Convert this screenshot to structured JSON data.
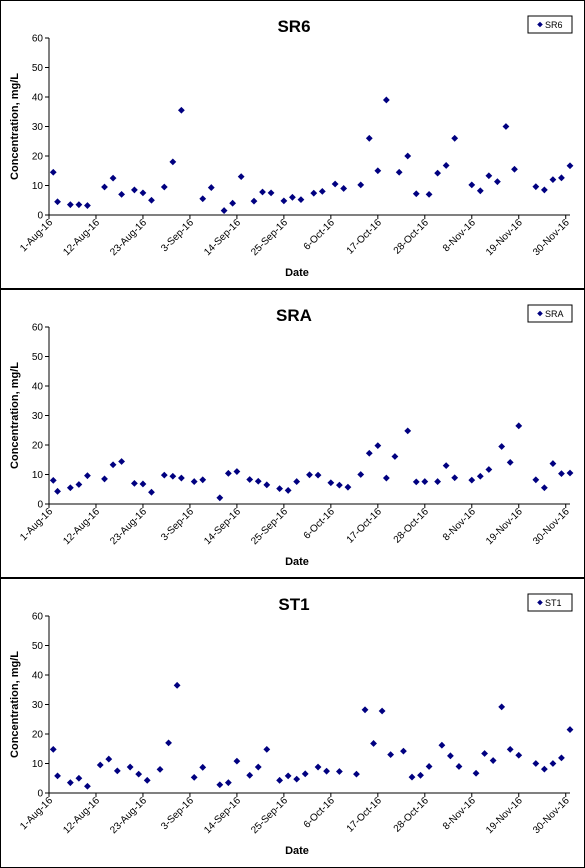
{
  "colors": {
    "marker": "#000080",
    "axis": "#000000",
    "background": "#ffffff"
  },
  "chart_data": [
    {
      "type": "scatter",
      "title": "SR6",
      "xlabel": "Date",
      "ylabel": "Concentration, mg/L",
      "ylim": [
        0,
        60
      ],
      "yticks": [
        "0",
        "10",
        "20",
        "30",
        "40",
        "50",
        "60"
      ],
      "xlim": [
        "2016-08-01",
        "2016-12-01"
      ],
      "xtick_dates": [
        "2016-08-01",
        "2016-08-12",
        "2016-08-23",
        "2016-09-03",
        "2016-09-14",
        "2016-09-25",
        "2016-10-06",
        "2016-10-17",
        "2016-10-28",
        "2016-11-08",
        "2016-11-19",
        "2016-11-30"
      ],
      "xtick_labels": [
        "1-Aug-16",
        "12-Aug-16",
        "23-Aug-16",
        "3-Sep-16",
        "14-Sep-16",
        "25-Sep-16",
        "6-Oct-16",
        "17-Oct-16",
        "28-Oct-16",
        "8-Nov-16",
        "19-Nov-16",
        "30-Nov-16"
      ],
      "legend": "top-right",
      "series": [
        {
          "name": "SR6",
          "x": [
            "2016-08-02",
            "2016-08-03",
            "2016-08-06",
            "2016-08-08",
            "2016-08-10",
            "2016-08-14",
            "2016-08-16",
            "2016-08-18",
            "2016-08-21",
            "2016-08-23",
            "2016-08-25",
            "2016-08-28",
            "2016-08-30",
            "2016-09-01",
            "2016-09-06",
            "2016-09-08",
            "2016-09-11",
            "2016-09-13",
            "2016-09-15",
            "2016-09-18",
            "2016-09-20",
            "2016-09-22",
            "2016-09-25",
            "2016-09-27",
            "2016-09-29",
            "2016-10-02",
            "2016-10-04",
            "2016-10-07",
            "2016-10-09",
            "2016-10-13",
            "2016-10-15",
            "2016-10-17",
            "2016-10-19",
            "2016-10-22",
            "2016-10-24",
            "2016-10-26",
            "2016-10-29",
            "2016-10-31",
            "2016-11-02",
            "2016-11-04",
            "2016-11-08",
            "2016-11-10",
            "2016-11-12",
            "2016-11-14",
            "2016-11-16",
            "2016-11-18",
            "2016-11-23",
            "2016-11-25",
            "2016-11-27",
            "2016-11-29",
            "2016-12-01"
          ],
          "y": [
            14.5,
            4.5,
            3.5,
            3.5,
            3.2,
            9.5,
            12.5,
            7,
            8.5,
            7.5,
            5,
            9.5,
            18,
            35.5,
            5.5,
            9.3,
            1.5,
            4,
            13,
            4.7,
            7.8,
            7.5,
            4.8,
            6,
            5.2,
            7.4,
            8,
            10.5,
            9,
            10.2,
            26,
            15,
            39,
            14.5,
            20,
            7.2,
            7,
            14.2,
            16.8,
            26,
            10.2,
            8.2,
            13.3,
            11.3,
            30,
            15.5,
            9.6,
            8.5,
            12,
            12.6,
            16.7
          ]
        }
      ]
    },
    {
      "type": "scatter",
      "title": "SRA",
      "xlabel": "Date",
      "ylabel": "Concentration, mg/L",
      "ylim": [
        0,
        60
      ],
      "yticks": [
        "0",
        "10",
        "20",
        "30",
        "40",
        "50",
        "60"
      ],
      "xlim": [
        "2016-08-01",
        "2016-12-01"
      ],
      "xtick_dates": [
        "2016-08-01",
        "2016-08-12",
        "2016-08-23",
        "2016-09-03",
        "2016-09-14",
        "2016-09-25",
        "2016-10-06",
        "2016-10-17",
        "2016-10-28",
        "2016-11-08",
        "2016-11-19",
        "2016-11-30"
      ],
      "xtick_labels": [
        "1-Aug-16",
        "12-Aug-16",
        "23-Aug-16",
        "3-Sep-16",
        "14-Sep-16",
        "25-Sep-16",
        "6-Oct-16",
        "17-Oct-16",
        "28-Oct-16",
        "8-Nov-16",
        "19-Nov-16",
        "30-Nov-16"
      ],
      "legend": "top-right",
      "series": [
        {
          "name": "SRA",
          "x": [
            "2016-08-02",
            "2016-08-03",
            "2016-08-06",
            "2016-08-08",
            "2016-08-10",
            "2016-08-14",
            "2016-08-16",
            "2016-08-18",
            "2016-08-21",
            "2016-08-23",
            "2016-08-25",
            "2016-08-28",
            "2016-08-30",
            "2016-09-01",
            "2016-09-04",
            "2016-09-06",
            "2016-09-10",
            "2016-09-12",
            "2016-09-14",
            "2016-09-17",
            "2016-09-19",
            "2016-09-21",
            "2016-09-24",
            "2016-09-26",
            "2016-09-28",
            "2016-10-01",
            "2016-10-03",
            "2016-10-06",
            "2016-10-08",
            "2016-10-10",
            "2016-10-13",
            "2016-10-15",
            "2016-10-17",
            "2016-10-19",
            "2016-10-21",
            "2016-10-24",
            "2016-10-26",
            "2016-10-28",
            "2016-10-31",
            "2016-11-02",
            "2016-11-04",
            "2016-11-08",
            "2016-11-10",
            "2016-11-12",
            "2016-11-15",
            "2016-11-17",
            "2016-11-19",
            "2016-11-23",
            "2016-11-25",
            "2016-11-27",
            "2016-11-29",
            "2016-12-01"
          ],
          "y": [
            8,
            4.3,
            5.5,
            6.6,
            9.6,
            8.5,
            13.3,
            14.4,
            7,
            6.8,
            4,
            9.8,
            9.4,
            8.8,
            7.6,
            8.2,
            2.1,
            10.4,
            11,
            8.3,
            7.7,
            6.5,
            5.2,
            4.6,
            7.6,
            9.9,
            9.8,
            7.2,
            6.4,
            5.7,
            10,
            17.2,
            19.8,
            8.8,
            16.1,
            24.8,
            7.5,
            7.6,
            7.6,
            13,
            8.9,
            8.1,
            9.4,
            11.7,
            19.5,
            14.1,
            26.5,
            8.2,
            5.5,
            13.7,
            10.3,
            10.5
          ]
        }
      ]
    },
    {
      "type": "scatter",
      "title": "ST1",
      "xlabel": "Date",
      "ylabel": "Concentration, mg/L",
      "ylim": [
        0,
        60
      ],
      "yticks": [
        "0",
        "10",
        "20",
        "30",
        "40",
        "50",
        "60"
      ],
      "xlim": [
        "2016-08-01",
        "2016-12-01"
      ],
      "xtick_dates": [
        "2016-08-01",
        "2016-08-12",
        "2016-08-23",
        "2016-09-03",
        "2016-09-14",
        "2016-09-25",
        "2016-10-06",
        "2016-10-17",
        "2016-10-28",
        "2016-11-08",
        "2016-11-19",
        "2016-11-30"
      ],
      "xtick_labels": [
        "1-Aug-16",
        "12-Aug-16",
        "23-Aug-16",
        "3-Sep-16",
        "14-Sep-16",
        "25-Sep-16",
        "6-Oct-16",
        "17-Oct-16",
        "28-Oct-16",
        "8-Nov-16",
        "19-Nov-16",
        "30-Nov-16"
      ],
      "legend": "top-right",
      "series": [
        {
          "name": "ST1",
          "x": [
            "2016-08-02",
            "2016-08-03",
            "2016-08-06",
            "2016-08-08",
            "2016-08-10",
            "2016-08-13",
            "2016-08-15",
            "2016-08-17",
            "2016-08-20",
            "2016-08-22",
            "2016-08-24",
            "2016-08-27",
            "2016-08-29",
            "2016-08-31",
            "2016-09-04",
            "2016-09-06",
            "2016-09-10",
            "2016-09-12",
            "2016-09-14",
            "2016-09-17",
            "2016-09-19",
            "2016-09-21",
            "2016-09-24",
            "2016-09-26",
            "2016-09-28",
            "2016-09-30",
            "2016-10-03",
            "2016-10-05",
            "2016-10-08",
            "2016-10-12",
            "2016-10-14",
            "2016-10-16",
            "2016-10-18",
            "2016-10-20",
            "2016-10-23",
            "2016-10-25",
            "2016-10-27",
            "2016-10-29",
            "2016-11-01",
            "2016-11-03",
            "2016-11-05",
            "2016-11-09",
            "2016-11-11",
            "2016-11-13",
            "2016-11-15",
            "2016-11-17",
            "2016-11-19",
            "2016-11-23",
            "2016-11-25",
            "2016-11-27",
            "2016-11-29",
            "2016-12-01"
          ],
          "y": [
            14.8,
            5.8,
            3.5,
            5,
            2.3,
            9.5,
            11.5,
            7.5,
            8.8,
            6.4,
            4.3,
            8,
            17,
            36.5,
            5.3,
            8.7,
            2.8,
            3.5,
            10.8,
            6,
            8.8,
            14.8,
            4.3,
            5.8,
            4.7,
            6.5,
            8.8,
            7.4,
            7.3,
            6.4,
            28.2,
            16.8,
            27.8,
            13,
            14.2,
            5.4,
            6,
            9,
            16.2,
            12.6,
            9,
            6.7,
            13.4,
            11,
            29.2,
            14.8,
            12.8,
            10,
            8.1,
            10,
            11.9,
            21.5
          ]
        }
      ]
    }
  ]
}
